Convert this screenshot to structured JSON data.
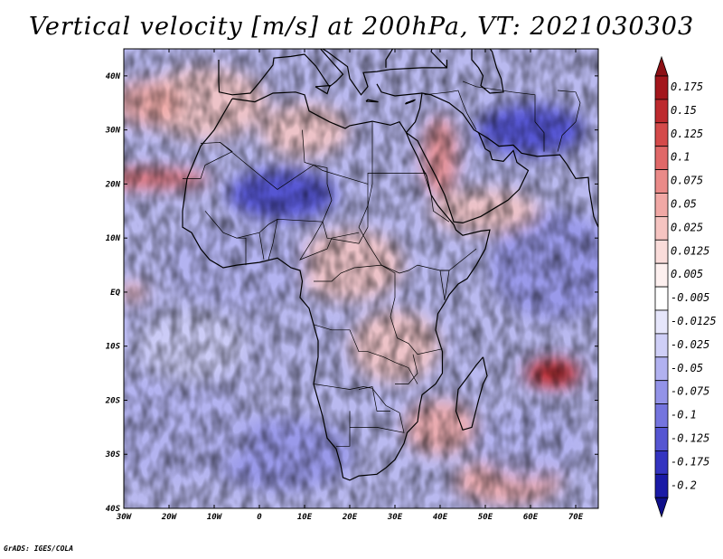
{
  "chart_data": {
    "type": "heatmap",
    "title": "Vertical velocity [m/s] at 200hPa, VT: 2021030303",
    "variable": "Vertical velocity",
    "units": "m/s",
    "level": "200hPa",
    "valid_time": "2021030303",
    "x_axis": {
      "range": [
        -30,
        75
      ],
      "ticks": [
        {
          "value": -30,
          "label": "30W"
        },
        {
          "value": -20,
          "label": "20W"
        },
        {
          "value": -10,
          "label": "10W"
        },
        {
          "value": 0,
          "label": "0"
        },
        {
          "value": 10,
          "label": "10E"
        },
        {
          "value": 20,
          "label": "20E"
        },
        {
          "value": 30,
          "label": "30E"
        },
        {
          "value": 40,
          "label": "40E"
        },
        {
          "value": 50,
          "label": "50E"
        },
        {
          "value": 60,
          "label": "60E"
        },
        {
          "value": 70,
          "label": "70E"
        }
      ]
    },
    "y_axis": {
      "range": [
        -40,
        45
      ],
      "ticks": [
        {
          "value": 40,
          "label": "40N"
        },
        {
          "value": 30,
          "label": "30N"
        },
        {
          "value": 20,
          "label": "20N"
        },
        {
          "value": 10,
          "label": "10N"
        },
        {
          "value": 0,
          "label": "EQ"
        },
        {
          "value": -10,
          "label": "10S"
        },
        {
          "value": -20,
          "label": "20S"
        },
        {
          "value": -30,
          "label": "30S"
        },
        {
          "value": -40,
          "label": "40S"
        }
      ]
    },
    "colorbar": {
      "levels": [
        {
          "label": "0.175",
          "color": "#a3161c"
        },
        {
          "label": "0.15",
          "color": "#bd2a2e"
        },
        {
          "label": "0.125",
          "color": "#d44a4a"
        },
        {
          "label": "0.1",
          "color": "#e06868"
        },
        {
          "label": "0.075",
          "color": "#ea8a88"
        },
        {
          "label": "0.05",
          "color": "#f1a8a5"
        },
        {
          "label": "0.025",
          "color": "#f6c4c1"
        },
        {
          "label": "0.0125",
          "color": "#fadcda"
        },
        {
          "label": "0.005",
          "color": "#fdf0ef"
        },
        {
          "label": "-0.005",
          "color": "#ffffff"
        },
        {
          "label": "-0.0125",
          "color": "#e6e6fb"
        },
        {
          "label": "-0.025",
          "color": "#cfcff7"
        },
        {
          "label": "-0.05",
          "color": "#b1b1f0"
        },
        {
          "label": "-0.075",
          "color": "#9393e8"
        },
        {
          "label": "-0.1",
          "color": "#7474de"
        },
        {
          "label": "-0.125",
          "color": "#5555d2"
        },
        {
          "label": "-0.175",
          "color": "#3434c0"
        },
        {
          "label": "-0.2",
          "color": "#1a1aa6"
        }
      ],
      "extend_top_color": "#8c1015",
      "extend_bottom_color": "#0f0f8a"
    },
    "features": [
      {
        "name": "strong positive cell SE of Madagascar",
        "lon": 65,
        "lat": -15,
        "value": 0.15
      },
      {
        "name": "positive band off NW Africa",
        "lon": -25,
        "lat": 21,
        "value": 0.1
      },
      {
        "name": "negative zone over Sahara",
        "lon": 5,
        "lat": 18,
        "value": -0.125
      },
      {
        "name": "negative belt over Iran",
        "lon": 60,
        "lat": 30,
        "value": -0.15
      }
    ]
  },
  "footer": {
    "credit": "GrADS: IGES/COLA"
  }
}
